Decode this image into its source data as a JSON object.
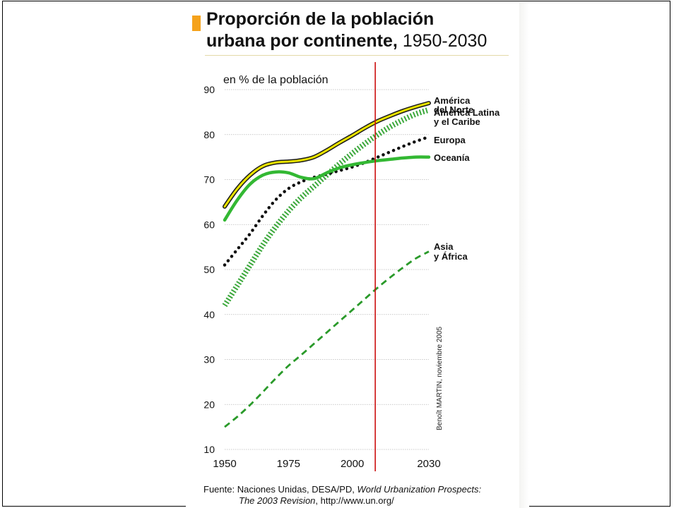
{
  "title": {
    "line1": "Proporción de la población",
    "line2": "urbana por continente,",
    "years": "1950-2030"
  },
  "credit": "Benoît MARTIN, noviembre 2005",
  "source": {
    "prefix": "Fuente: Naciones Unidas, DESA/PD, ",
    "italic1": "World Urbanization Prospects:",
    "italic2": "The 2003 Revision",
    "suffix": ", http://www.un.org/"
  },
  "colors": {
    "north_america_line": "#e8e200",
    "north_america_outline": "#1a1a1a",
    "latin_america": "#3ba83b",
    "europe": "#111111",
    "oceania": "#33b833",
    "asia_africa": "#2a9a2a",
    "current_year_marker": "#cc1010",
    "title_accent": "#f5a21b"
  },
  "chart_data": {
    "type": "line",
    "ylabel": "en % de la población",
    "xlim": [
      1950,
      2030
    ],
    "ylim": [
      10,
      90
    ],
    "x_ticks": [
      1950,
      1975,
      2000,
      2030
    ],
    "y_ticks": [
      10,
      20,
      30,
      40,
      50,
      60,
      70,
      80,
      90
    ],
    "grid": true,
    "marker_x": 2009,
    "x": [
      1950,
      1955,
      1960,
      1965,
      1970,
      1975,
      1980,
      1985,
      1990,
      1995,
      2000,
      2005,
      2010,
      2015,
      2020,
      2025,
      2030
    ],
    "series": [
      {
        "name": "América del Norte",
        "style": "double-yellow",
        "values": [
          64.0,
          68.0,
          71.0,
          73.0,
          73.8,
          74.0,
          74.3,
          75.0,
          76.5,
          78.2,
          79.8,
          81.5,
          83.0,
          84.2,
          85.3,
          86.2,
          87.0
        ]
      },
      {
        "name": "América Latina y el Caribe",
        "style": "hatched",
        "values": [
          42.0,
          46.5,
          51.0,
          55.5,
          59.5,
          63.0,
          66.0,
          68.5,
          71.0,
          73.5,
          75.8,
          78.0,
          80.0,
          81.8,
          83.3,
          84.6,
          85.5
        ]
      },
      {
        "name": "Europa",
        "style": "dotted",
        "values": [
          51.0,
          54.5,
          58.0,
          62.0,
          65.5,
          68.0,
          69.5,
          70.5,
          71.2,
          72.0,
          72.8,
          73.8,
          75.0,
          76.2,
          77.4,
          78.5,
          79.5
        ]
      },
      {
        "name": "Oceanía",
        "style": "solid",
        "values": [
          61.0,
          65.5,
          69.0,
          71.0,
          71.7,
          71.5,
          70.5,
          70.2,
          71.5,
          72.6,
          73.3,
          73.8,
          74.2,
          74.5,
          74.8,
          75.0,
          75.0
        ]
      },
      {
        "name": "Asia y África",
        "style": "dashed",
        "values": [
          15.0,
          17.3,
          19.9,
          22.8,
          25.8,
          28.6,
          31.0,
          33.5,
          36.0,
          38.5,
          41.0,
          43.5,
          46.0,
          48.3,
          50.5,
          52.5,
          54.0
        ]
      }
    ],
    "legend_labels": [
      {
        "series": 0,
        "lines": [
          "América",
          "del Norte"
        ]
      },
      {
        "series": 1,
        "lines": [
          "América Latina",
          "y el Caribe"
        ]
      },
      {
        "series": 2,
        "lines": [
          "Europa"
        ]
      },
      {
        "series": 3,
        "lines": [
          "Oceanía"
        ]
      },
      {
        "series": 4,
        "lines": [
          "Asia",
          "y África"
        ]
      }
    ]
  }
}
